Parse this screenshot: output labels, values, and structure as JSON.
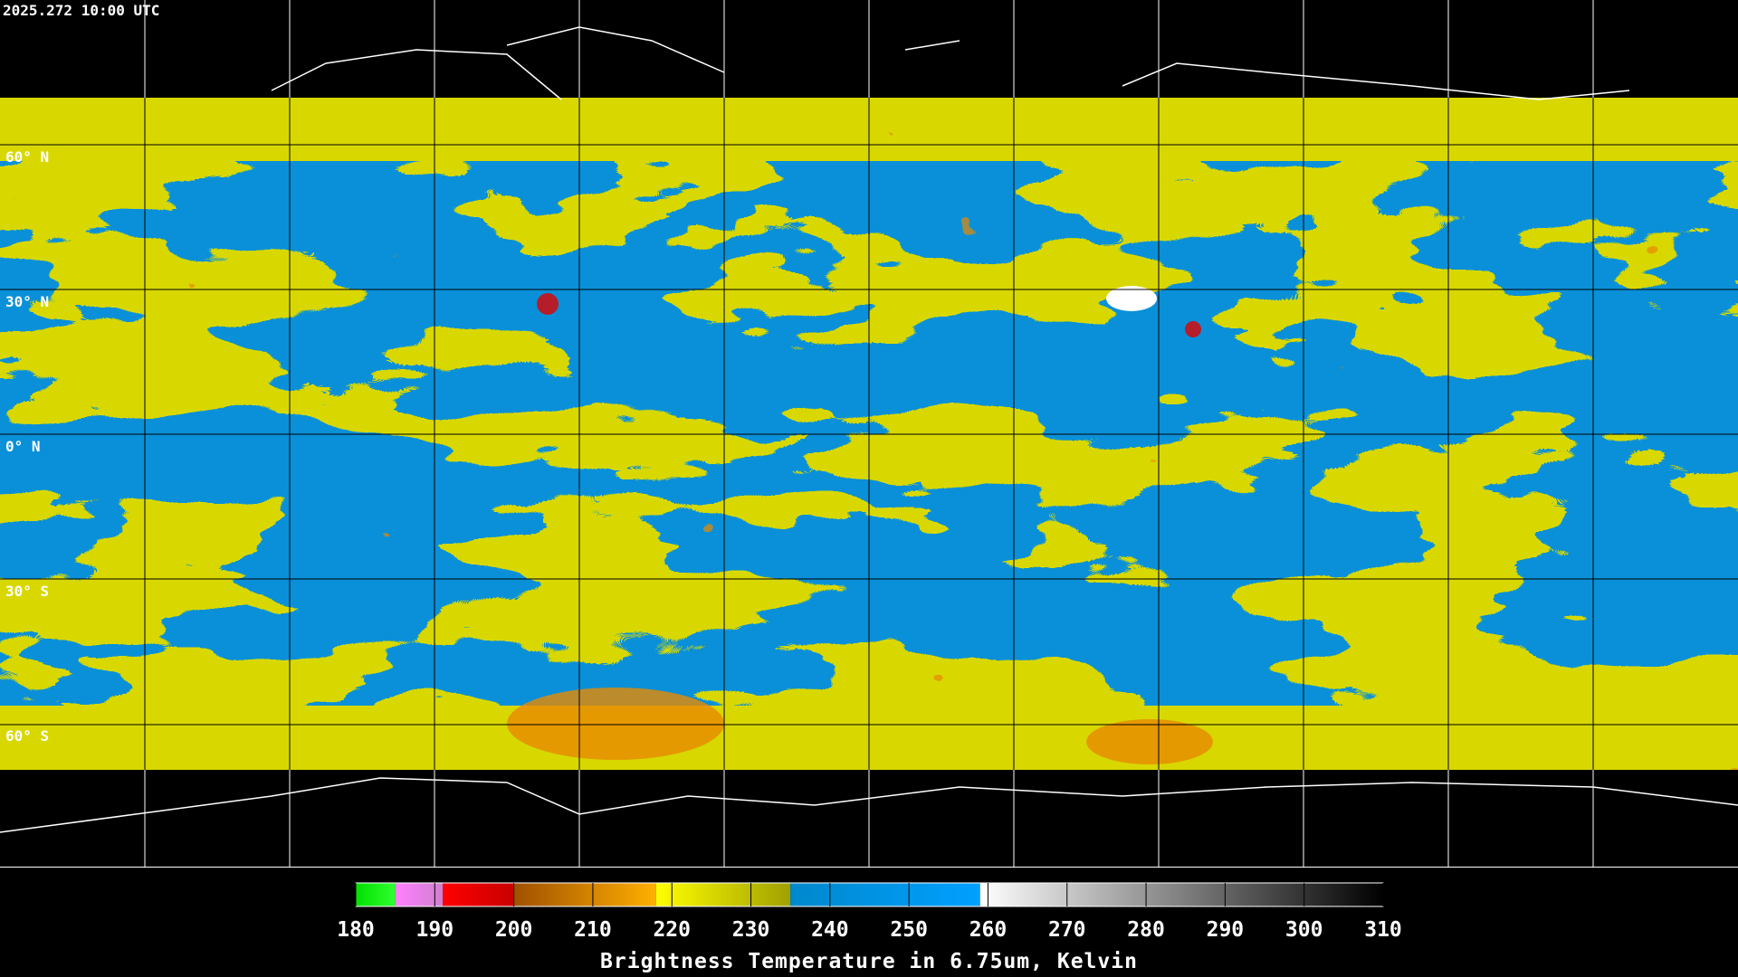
{
  "header": {
    "timestamp": "2025.272 10:00 UTC"
  },
  "map": {
    "lat_labels": [
      "60° N",
      "30° N",
      "0° N",
      "30° S",
      "60° S"
    ]
  },
  "colorbar": {
    "range": [
      180,
      310
    ],
    "ticks": [
      180,
      190,
      200,
      210,
      220,
      230,
      240,
      250,
      260,
      270,
      280,
      290,
      300,
      310
    ],
    "label": "Brightness Temperature in 6.75um, Kelvin",
    "segments": [
      {
        "from": 180,
        "to": 185,
        "colors": [
          "#00e000",
          "#30ff30"
        ]
      },
      {
        "from": 185,
        "to": 191,
        "colors": [
          "#ff80ff",
          "#d080d0"
        ]
      },
      {
        "from": 191,
        "to": 200,
        "colors": [
          "#ff0000",
          "#c80000"
        ]
      },
      {
        "from": 200,
        "to": 218,
        "colors": [
          "#a05000",
          "#ffb000"
        ]
      },
      {
        "from": 218,
        "to": 235,
        "colors": [
          "#ffff00",
          "#a0a000"
        ]
      },
      {
        "from": 235,
        "to": 259,
        "colors": [
          "#0088cc",
          "#00a0ff"
        ]
      },
      {
        "from": 259,
        "to": 310,
        "colors": [
          "#ffffff",
          "#000000"
        ]
      }
    ]
  }
}
